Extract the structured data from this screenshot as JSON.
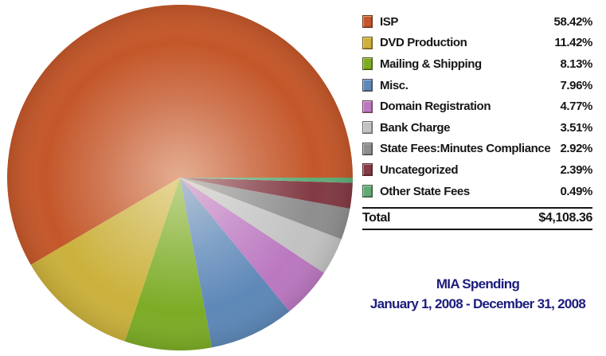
{
  "chart_data": {
    "type": "pie",
    "title": "MIA Spending",
    "subtitle": "January 1, 2008 - December 31, 2008",
    "title_color": "#1C1C7D",
    "legend_position": "right",
    "start_angle_deg": 0,
    "direction": "counterclockwise",
    "total_label": "Total",
    "total_value": "$4,108.36",
    "slices": [
      {
        "label": "ISP",
        "pct": 58.42,
        "pct_label": "58.42%",
        "color": "#C4572A"
      },
      {
        "label": "DVD Production",
        "pct": 11.42,
        "pct_label": "11.42%",
        "color": "#CBB13C"
      },
      {
        "label": "Mailing & Shipping",
        "pct": 8.13,
        "pct_label": "8.13%",
        "color": "#7CAC26"
      },
      {
        "label": "Misc.",
        "pct": 7.96,
        "pct_label": "7.96%",
        "color": "#5E88B8"
      },
      {
        "label": "Domain Registration",
        "pct": 4.77,
        "pct_label": "4.77%",
        "color": "#BB78C0"
      },
      {
        "label": "Bank Charge",
        "pct": 3.51,
        "pct_label": "3.51%",
        "color": "#C2C2C2"
      },
      {
        "label": "State Fees:Minutes Compliance",
        "pct": 2.92,
        "pct_label": "2.92%",
        "color": "#8E8E8E"
      },
      {
        "label": "Uncategorized",
        "pct": 2.39,
        "pct_label": "2.39%",
        "color": "#823A44"
      },
      {
        "label": "Other State Fees",
        "pct": 0.49,
        "pct_label": "0.49%",
        "color": "#5FAB76"
      }
    ]
  }
}
